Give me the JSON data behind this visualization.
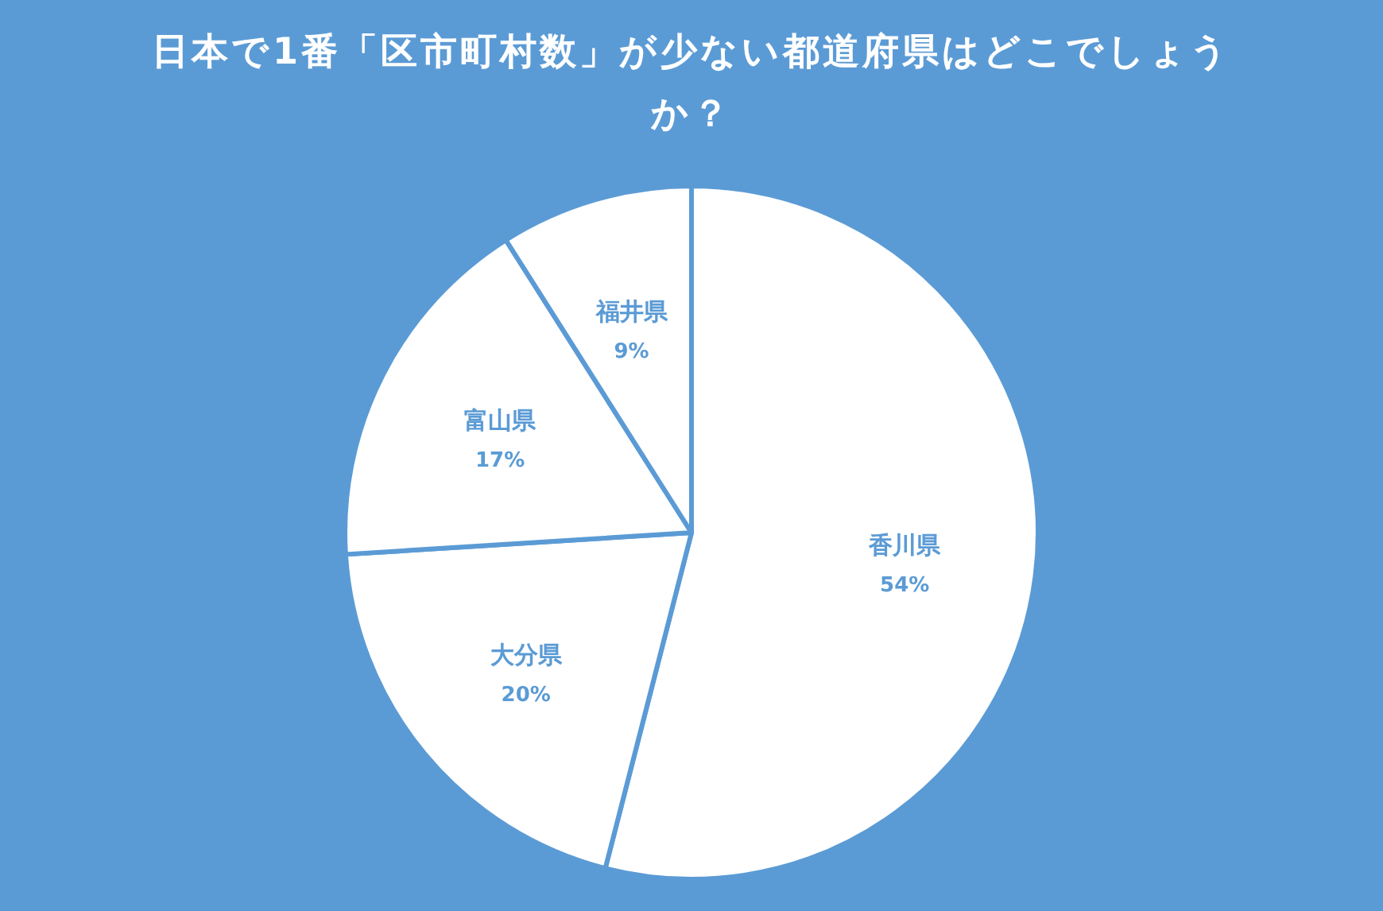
{
  "chart_data": {
    "type": "pie",
    "title": "日本で1番「区市町村数」が少ない都道府県はどこでしょうか？",
    "categories": [
      "香川県",
      "大分県",
      "富山県",
      "福井県"
    ],
    "values": [
      54,
      20,
      17,
      9
    ],
    "value_labels": [
      "54%",
      "20%",
      "17%",
      "9%"
    ],
    "colors": [
      "#ffffff",
      "#ffffff",
      "#ffffff",
      "#ffffff"
    ]
  }
}
